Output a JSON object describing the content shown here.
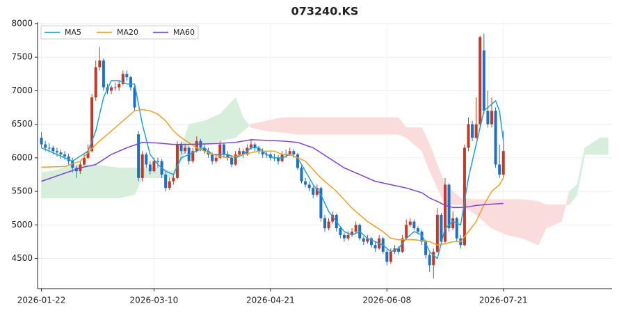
{
  "chart_data": {
    "type": "candlestick",
    "title": "073240.KS",
    "up_color": "#c0392b",
    "down_color": "#1f6fc5",
    "grid": true,
    "legend": "upper left",
    "xlim": [
      -1,
      147
    ],
    "ylim": [
      4050,
      8020
    ],
    "yticks": [
      4500,
      5000,
      5500,
      6000,
      6500,
      7000,
      7500,
      8000
    ],
    "xticks": [
      {
        "value": 0,
        "label": "2026-01-22"
      },
      {
        "value": 29,
        "label": "2026-03-10"
      },
      {
        "value": 59,
        "label": "2026-04-21"
      },
      {
        "value": 89,
        "label": "2026-06-08"
      },
      {
        "value": 119,
        "label": "2026-07-21"
      }
    ],
    "ohlc": [
      [
        6300,
        6380,
        6150,
        6200
      ],
      [
        6200,
        6250,
        6100,
        6150
      ],
      [
        6150,
        6220,
        6080,
        6150
      ],
      [
        6150,
        6180,
        6050,
        6100
      ],
      [
        6100,
        6150,
        6020,
        6080
      ],
      [
        6080,
        6120,
        5980,
        6050
      ],
      [
        6050,
        6100,
        5970,
        6020
      ],
      [
        6020,
        6060,
        5900,
        5950
      ],
      [
        5950,
        6000,
        5780,
        5850
      ],
      [
        5850,
        5880,
        5700,
        5800
      ],
      [
        5800,
        5950,
        5760,
        5900
      ],
      [
        5900,
        6060,
        5880,
        6000
      ],
      [
        6000,
        6200,
        5980,
        6100
      ],
      [
        6100,
        6950,
        6080,
        6900
      ],
      [
        6900,
        7450,
        6850,
        7350
      ],
      [
        7350,
        7650,
        7300,
        7450
      ],
      [
        7450,
        7480,
        7000,
        7050
      ],
      [
        7050,
        7100,
        6950,
        7000
      ],
      [
        7000,
        7080,
        6950,
        7050
      ],
      [
        7050,
        7120,
        7000,
        7050
      ],
      [
        7050,
        7150,
        7000,
        7100
      ],
      [
        7100,
        7300,
        7080,
        7250
      ],
      [
        7250,
        7300,
        7150,
        7200
      ],
      [
        7200,
        7220,
        7000,
        7050
      ],
      [
        7050,
        7080,
        6700,
        6750
      ],
      [
        6350,
        6400,
        5650,
        5700
      ],
      [
        5700,
        6100,
        5650,
        6050
      ],
      [
        6050,
        6080,
        5850,
        5900
      ],
      [
        5900,
        5950,
        5750,
        5800
      ],
      [
        5800,
        6000,
        5780,
        5950
      ],
      [
        5950,
        6000,
        5850,
        5950
      ],
      [
        5950,
        5980,
        5700,
        5750
      ],
      [
        5750,
        5780,
        5500,
        5550
      ],
      [
        5550,
        5700,
        5520,
        5650
      ],
      [
        5650,
        5760,
        5600,
        5700
      ],
      [
        5700,
        6250,
        5680,
        6200
      ],
      [
        6200,
        6240,
        6050,
        6100
      ],
      [
        6100,
        6200,
        6060,
        6150
      ],
      [
        6150,
        6180,
        5900,
        5950
      ],
      [
        5950,
        6150,
        5920,
        6100
      ],
      [
        6100,
        6320,
        6080,
        6250
      ],
      [
        6250,
        6280,
        6100,
        6150
      ],
      [
        6150,
        6200,
        6060,
        6100
      ],
      [
        6100,
        6150,
        6000,
        6050
      ],
      [
        6050,
        6080,
        5900,
        5950
      ],
      [
        5950,
        6050,
        5920,
        6000
      ],
      [
        6000,
        6250,
        5980,
        6200
      ],
      [
        6200,
        6220,
        6000,
        6050
      ],
      [
        6050,
        6100,
        5960,
        6000
      ],
      [
        6000,
        6040,
        5860,
        5900
      ],
      [
        5900,
        6100,
        5880,
        6050
      ],
      [
        6050,
        6150,
        6020,
        6100
      ],
      [
        6100,
        6130,
        6000,
        6050
      ],
      [
        6050,
        6200,
        6030,
        6150
      ],
      [
        6150,
        6280,
        6120,
        6200
      ],
      [
        6200,
        6230,
        6100,
        6150
      ],
      [
        6150,
        6180,
        6060,
        6100
      ],
      [
        6100,
        6140,
        6000,
        6050
      ],
      [
        6050,
        6100,
        6000,
        6050
      ],
      [
        6050,
        6080,
        5960,
        6000
      ],
      [
        6000,
        6060,
        5950,
        6000
      ],
      [
        6000,
        6040,
        5900,
        5950
      ],
      [
        5950,
        6100,
        5930,
        6050
      ],
      [
        6050,
        6120,
        6000,
        6050
      ],
      [
        6050,
        6150,
        6030,
        6100
      ],
      [
        6100,
        6130,
        6000,
        6050
      ],
      [
        6050,
        6070,
        5820,
        5850
      ],
      [
        5850,
        5880,
        5620,
        5650
      ],
      [
        5650,
        5700,
        5560,
        5600
      ],
      [
        5600,
        5650,
        5500,
        5550
      ],
      [
        5550,
        5580,
        5400,
        5450
      ],
      [
        5450,
        5600,
        5420,
        5550
      ],
      [
        5550,
        5570,
        5050,
        5100
      ],
      [
        5100,
        5150,
        4900,
        4950
      ],
      [
        4950,
        5100,
        4920,
        5050
      ],
      [
        5050,
        5200,
        5020,
        5150
      ],
      [
        5150,
        5170,
        4900,
        4950
      ],
      [
        4950,
        4980,
        4800,
        4850
      ],
      [
        4850,
        4880,
        4750,
        4800
      ],
      [
        4800,
        4900,
        4770,
        4850
      ],
      [
        4850,
        4950,
        4820,
        4900
      ],
      [
        4900,
        5050,
        4880,
        5000
      ],
      [
        5000,
        5020,
        4770,
        4800
      ],
      [
        4800,
        4830,
        4700,
        4750
      ],
      [
        4750,
        4850,
        4720,
        4800
      ],
      [
        4800,
        4820,
        4660,
        4700
      ],
      [
        4700,
        4750,
        4600,
        4650
      ],
      [
        4650,
        4850,
        4630,
        4800
      ],
      [
        4800,
        4820,
        4570,
        4600
      ],
      [
        4600,
        4630,
        4400,
        4450
      ],
      [
        4450,
        4650,
        4420,
        4600
      ],
      [
        4600,
        4700,
        4570,
        4650
      ],
      [
        4650,
        4680,
        4560,
        4600
      ],
      [
        4600,
        4850,
        4580,
        4800
      ],
      [
        4800,
        5080,
        4780,
        5000
      ],
      [
        5000,
        5100,
        4970,
        5050
      ],
      [
        5050,
        5080,
        4920,
        4950
      ],
      [
        4950,
        4980,
        4860,
        4900
      ],
      [
        4900,
        4930,
        4700,
        4750
      ],
      [
        4750,
        4780,
        4500,
        4550
      ],
      [
        4550,
        4580,
        4300,
        4400
      ],
      [
        4400,
        4650,
        4200,
        4600
      ],
      [
        4600,
        5250,
        4580,
        5150
      ],
      [
        5150,
        5180,
        4700,
        4750
      ],
      [
        4750,
        5700,
        4730,
        5600
      ],
      [
        5600,
        5620,
        4900,
        4950
      ],
      [
        4950,
        5200,
        4920,
        5100
      ],
      [
        5100,
        5120,
        4750,
        4800
      ],
      [
        4800,
        4850,
        4650,
        4700
      ],
      [
        4700,
        6200,
        4680,
        6150
      ],
      [
        6150,
        6600,
        6100,
        6500
      ],
      [
        6500,
        6550,
        6250,
        6300
      ],
      [
        6300,
        6900,
        6280,
        6500
      ],
      [
        6500,
        7820,
        6450,
        7800
      ],
      [
        7600,
        7850,
        6650,
        6700
      ],
      [
        6700,
        7000,
        6450,
        6500
      ],
      [
        6500,
        6900,
        6450,
        6700
      ],
      [
        6700,
        6750,
        5850,
        5900
      ],
      [
        5900,
        6200,
        5700,
        5750
      ],
      [
        5750,
        6400,
        5700,
        6100
      ]
    ],
    "series": [
      {
        "name": "MA5",
        "color": "#1ba3d6",
        "x": [
          0,
          4,
          8,
          12,
          14,
          16,
          18,
          20,
          22,
          24,
          26,
          28,
          30,
          32,
          34,
          36,
          38,
          40,
          42,
          44,
          46,
          48,
          50,
          52,
          54,
          56,
          58,
          60,
          62,
          64,
          66,
          68,
          70,
          72,
          74,
          76,
          78,
          80,
          82,
          84,
          86,
          88,
          90,
          92,
          94,
          96,
          98,
          100,
          102,
          104,
          106,
          108,
          110,
          112,
          114,
          116,
          117,
          118,
          119
        ],
        "values": [
          6150,
          6050,
          5950,
          6100,
          6400,
          6900,
          7150,
          7150,
          7100,
          7100,
          6500,
          6050,
          5900,
          5800,
          5750,
          6000,
          6050,
          6100,
          6150,
          6050,
          6050,
          6050,
          6000,
          6050,
          6150,
          6150,
          6050,
          6000,
          6000,
          6050,
          6000,
          5800,
          5600,
          5450,
          5200,
          5050,
          4900,
          4850,
          4900,
          4800,
          4750,
          4700,
          4600,
          4650,
          4800,
          4900,
          4850,
          4600,
          4500,
          4950,
          5050,
          5000,
          5700,
          6200,
          6700,
          6800,
          6850,
          6700,
          6250
        ]
      },
      {
        "name": "MA20",
        "color": "#f0a020",
        "x": [
          0,
          6,
          10,
          14,
          18,
          22,
          24,
          26,
          28,
          30,
          32,
          34,
          36,
          40,
          44,
          48,
          52,
          56,
          60,
          62,
          64,
          68,
          72,
          76,
          80,
          84,
          88,
          90,
          92,
          96,
          100,
          102,
          104,
          106,
          108,
          110,
          112,
          114,
          116,
          118,
          119
        ],
        "values": [
          5860,
          5870,
          5950,
          6200,
          6400,
          6600,
          6700,
          6720,
          6700,
          6650,
          6550,
          6400,
          6300,
          6150,
          6050,
          6000,
          6050,
          6100,
          6100,
          6050,
          6050,
          5950,
          5700,
          5500,
          5250,
          5050,
          4900,
          4800,
          4780,
          4780,
          4750,
          4700,
          4720,
          4750,
          4750,
          4900,
          5050,
          5300,
          5500,
          5600,
          5700
        ]
      },
      {
        "name": "MA60",
        "color": "#7b3fe4",
        "x": [
          0,
          10,
          14,
          18,
          22,
          26,
          30,
          34,
          38,
          44,
          50,
          54,
          58,
          62,
          66,
          70,
          74,
          78,
          82,
          86,
          90,
          94,
          98,
          100,
          102,
          104,
          106,
          108,
          110,
          112,
          114,
          116,
          119
        ],
        "values": [
          5650,
          5850,
          5900,
          6050,
          6150,
          6230,
          6220,
          6200,
          6200,
          6210,
          6230,
          6270,
          6260,
          6250,
          6230,
          6150,
          6000,
          5850,
          5750,
          5650,
          5600,
          5550,
          5480,
          5400,
          5350,
          5290,
          5260,
          5260,
          5270,
          5290,
          5300,
          5310,
          5320
        ]
      }
    ],
    "cloud": {
      "bull_color": "#d6eedb",
      "bear_color": "#fbdcdc",
      "x": [
        0,
        4,
        8,
        12,
        16,
        20,
        24,
        26,
        30,
        34,
        38,
        42,
        46,
        50,
        52,
        54,
        58,
        62,
        66,
        70,
        74,
        80,
        86,
        92,
        94,
        98,
        100,
        104,
        108,
        112,
        116,
        120,
        124,
        128,
        130,
        134,
        136,
        138,
        140,
        144,
        146
      ],
      "span_a": [
        5780,
        5820,
        5900,
        5900,
        5880,
        5850,
        5850,
        5850,
        5850,
        5800,
        6500,
        6550,
        6650,
        6900,
        6600,
        6450,
        6400,
        6380,
        6350,
        6350,
        6350,
        6350,
        6350,
        6350,
        6300,
        6100,
        5800,
        5300,
        5300,
        5150,
        4950,
        4850,
        4800,
        4700,
        4950,
        5050,
        5500,
        5600,
        6150,
        6300,
        6300
      ],
      "span_b": [
        5400,
        5400,
        5400,
        5400,
        5400,
        5400,
        5450,
        5700,
        5700,
        5700,
        6200,
        6200,
        6250,
        6300,
        6400,
        6500,
        6550,
        6600,
        6600,
        6600,
        6600,
        6600,
        6600,
        6600,
        6450,
        6450,
        6200,
        5600,
        5400,
        5380,
        5380,
        5380,
        5380,
        5350,
        5300,
        5300,
        5300,
        5450,
        6050,
        6050,
        6050
      ]
    }
  }
}
